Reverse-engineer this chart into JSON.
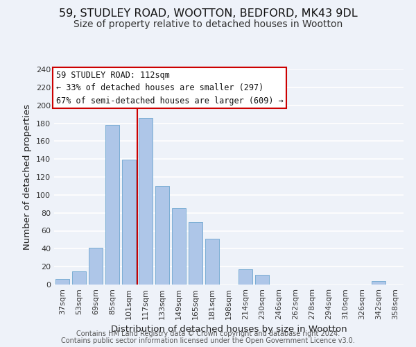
{
  "title": "59, STUDLEY ROAD, WOOTTON, BEDFORD, MK43 9DL",
  "subtitle": "Size of property relative to detached houses in Wootton",
  "xlabel": "Distribution of detached houses by size in Wootton",
  "ylabel": "Number of detached properties",
  "bar_labels": [
    "37sqm",
    "53sqm",
    "69sqm",
    "85sqm",
    "101sqm",
    "117sqm",
    "133sqm",
    "149sqm",
    "165sqm",
    "181sqm",
    "198sqm",
    "214sqm",
    "230sqm",
    "246sqm",
    "262sqm",
    "278sqm",
    "294sqm",
    "310sqm",
    "326sqm",
    "342sqm",
    "358sqm"
  ],
  "bar_values": [
    6,
    15,
    41,
    178,
    139,
    186,
    110,
    85,
    70,
    51,
    0,
    17,
    11,
    0,
    0,
    0,
    0,
    0,
    0,
    4,
    0
  ],
  "bar_color": "#aec6e8",
  "bar_edge_color": "#7aadd4",
  "vline_color": "#cc0000",
  "vline_position": 4.5,
  "ylim": [
    0,
    240
  ],
  "yticks": [
    0,
    20,
    40,
    60,
    80,
    100,
    120,
    140,
    160,
    180,
    200,
    220,
    240
  ],
  "annotation_title": "59 STUDLEY ROAD: 112sqm",
  "annotation_line1": "← 33% of detached houses are smaller (297)",
  "annotation_line2": "67% of semi-detached houses are larger (609) →",
  "footer1": "Contains HM Land Registry data © Crown copyright and database right 2024.",
  "footer2": "Contains public sector information licensed under the Open Government Licence v3.0.",
  "background_color": "#eef2f9",
  "grid_color": "#ffffff",
  "title_fontsize": 11.5,
  "subtitle_fontsize": 10,
  "axis_label_fontsize": 9.5,
  "tick_fontsize": 8,
  "annotation_fontsize": 8.5,
  "footer_fontsize": 7
}
